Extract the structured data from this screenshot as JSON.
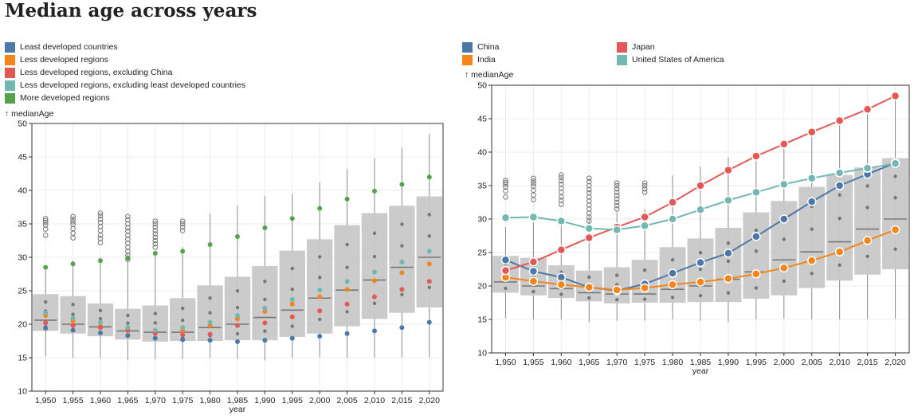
{
  "page": {
    "title": "Median age across years"
  },
  "chart_data": [
    {
      "type": "box",
      "xlabel": "year",
      "ylabel": "↑ medianAge",
      "ylim": [
        10,
        50
      ],
      "yticks": [
        10,
        15,
        20,
        25,
        30,
        35,
        40,
        45,
        50
      ],
      "grid": true,
      "legend_position": "top",
      "categories": [
        "1,950",
        "1,955",
        "1,960",
        "1,965",
        "1,970",
        "1,975",
        "1,980",
        "1,985",
        "1,990",
        "1,995",
        "2,000",
        "2,005",
        "2,010",
        "2,015",
        "2,020"
      ],
      "boxes": [
        {
          "q1": 19.0,
          "median": 20.6,
          "q3": 24.5,
          "min": 15.2,
          "max": 28.8
        },
        {
          "q1": 18.6,
          "median": 20.0,
          "q3": 24.2,
          "min": 15.0,
          "max": 29.5
        },
        {
          "q1": 18.2,
          "median": 19.6,
          "q3": 23.1,
          "min": 15.0,
          "max": 30.0
        },
        {
          "q1": 17.7,
          "median": 19.0,
          "q3": 22.3,
          "min": 14.6,
          "max": 30.5
        },
        {
          "q1": 17.4,
          "median": 18.8,
          "q3": 22.8,
          "min": 14.8,
          "max": 31.0
        },
        {
          "q1": 17.5,
          "median": 18.8,
          "q3": 23.9,
          "min": 14.8,
          "max": 31.5
        },
        {
          "q1": 17.5,
          "median": 19.5,
          "q3": 25.8,
          "min": 15.0,
          "max": 36.5
        },
        {
          "q1": 17.6,
          "median": 20.0,
          "q3": 27.1,
          "min": 14.8,
          "max": 37.8
        },
        {
          "q1": 17.6,
          "median": 21.0,
          "q3": 28.7,
          "min": 14.6,
          "max": 39.2
        },
        {
          "q1": 18.1,
          "median": 22.1,
          "q3": 31.0,
          "min": 15.0,
          "max": 39.5
        },
        {
          "q1": 18.6,
          "median": 23.9,
          "q3": 32.7,
          "min": 15.1,
          "max": 41.2
        },
        {
          "q1": 19.7,
          "median": 25.1,
          "q3": 34.8,
          "min": 15.0,
          "max": 43.2
        },
        {
          "q1": 20.8,
          "median": 26.6,
          "q3": 36.6,
          "min": 15.0,
          "max": 44.8
        },
        {
          "q1": 21.7,
          "median": 28.5,
          "q3": 37.7,
          "min": 15.1,
          "max": 46.4
        },
        {
          "q1": 22.5,
          "median": 30.0,
          "q3": 39.1,
          "min": 15.1,
          "max": 48.4
        }
      ],
      "outliers": [
        [
          33.3,
          34.2,
          34.8,
          35.2,
          35.5,
          35.8
        ],
        [
          32.9,
          33.6,
          34.3,
          34.9,
          35.3,
          35.7,
          36.1
        ],
        [
          32.2,
          32.8,
          33.3,
          34.0,
          34.6,
          35.2,
          35.7,
          36.2,
          36.6
        ],
        [
          29.7,
          30.3,
          30.9,
          31.5,
          32.1,
          32.7,
          33.3,
          33.9,
          34.4,
          35.0,
          35.6,
          36.1
        ],
        [
          31.5,
          32.0,
          32.5,
          33.0,
          33.5,
          34.0,
          34.5,
          35.0,
          35.4
        ],
        [
          34.0,
          34.5,
          35.0,
          35.4
        ]
      ],
      "series": [
        {
          "name": "Least developed countries",
          "color": "#4c78a8",
          "values": [
            19.4,
            19.1,
            18.7,
            18.3,
            17.9,
            17.7,
            17.6,
            17.4,
            17.6,
            17.9,
            18.2,
            18.6,
            19.0,
            19.5,
            20.3
          ]
        },
        {
          "name": "Less developed regions",
          "color": "#f58518",
          "values": [
            21.3,
            20.5,
            19.7,
            19.0,
            18.7,
            19.0,
            19.8,
            20.8,
            21.9,
            23.0,
            24.1,
            25.2,
            26.5,
            27.7,
            29.0
          ]
        },
        {
          "name": "Less developed regions, excluding China",
          "color": "#e45756",
          "values": [
            20.2,
            19.8,
            19.5,
            19.1,
            18.6,
            18.4,
            18.5,
            19.8,
            20.2,
            21.1,
            22.0,
            23.0,
            24.1,
            25.2,
            26.4
          ]
        },
        {
          "name": "Less developed regions, excluding least developed countries",
          "color": "#72b7b2",
          "values": [
            21.7,
            20.9,
            20.3,
            19.5,
            19.1,
            19.5,
            20.3,
            21.3,
            22.4,
            23.7,
            25.1,
            26.4,
            27.8,
            29.3,
            30.9
          ]
        },
        {
          "name": "More developed regions",
          "color": "#54a24b",
          "values": [
            28.5,
            29.0,
            29.5,
            29.9,
            30.6,
            30.9,
            31.9,
            33.1,
            34.4,
            35.8,
            37.3,
            38.7,
            39.9,
            40.9,
            42.0
          ]
        }
      ]
    },
    {
      "type": "box",
      "xlabel": "year",
      "ylabel": "↑ medianAge",
      "ylim": [
        10,
        50
      ],
      "yticks": [
        10,
        15,
        20,
        25,
        30,
        35,
        40,
        45,
        50
      ],
      "grid": true,
      "legend_position": "top",
      "categories": [
        "1,950",
        "1,955",
        "1,960",
        "1,965",
        "1,970",
        "1,975",
        "1,980",
        "1,985",
        "1,990",
        "1,995",
        "2,000",
        "2,005",
        "2,010",
        "2,015",
        "2,020"
      ],
      "boxes": [
        {
          "q1": 19.0,
          "median": 20.6,
          "q3": 24.5,
          "min": 15.2,
          "max": 28.8
        },
        {
          "q1": 18.6,
          "median": 20.0,
          "q3": 24.2,
          "min": 15.0,
          "max": 29.5
        },
        {
          "q1": 18.2,
          "median": 19.6,
          "q3": 23.1,
          "min": 15.0,
          "max": 30.0
        },
        {
          "q1": 17.7,
          "median": 19.0,
          "q3": 22.3,
          "min": 14.6,
          "max": 30.5
        },
        {
          "q1": 17.4,
          "median": 18.8,
          "q3": 22.8,
          "min": 14.8,
          "max": 31.0
        },
        {
          "q1": 17.5,
          "median": 18.8,
          "q3": 23.9,
          "min": 14.8,
          "max": 31.5
        },
        {
          "q1": 17.5,
          "median": 19.5,
          "q3": 25.8,
          "min": 15.0,
          "max": 36.5
        },
        {
          "q1": 17.6,
          "median": 20.0,
          "q3": 27.1,
          "min": 14.8,
          "max": 37.8
        },
        {
          "q1": 17.6,
          "median": 21.0,
          "q3": 28.7,
          "min": 14.6,
          "max": 39.2
        },
        {
          "q1": 18.1,
          "median": 22.1,
          "q3": 31.0,
          "min": 15.0,
          "max": 39.5
        },
        {
          "q1": 18.6,
          "median": 23.9,
          "q3": 32.7,
          "min": 15.1,
          "max": 41.2
        },
        {
          "q1": 19.7,
          "median": 25.1,
          "q3": 34.8,
          "min": 15.0,
          "max": 43.2
        },
        {
          "q1": 20.8,
          "median": 26.6,
          "q3": 36.6,
          "min": 15.0,
          "max": 44.8
        },
        {
          "q1": 21.7,
          "median": 28.5,
          "q3": 37.7,
          "min": 15.1,
          "max": 46.4
        },
        {
          "q1": 22.5,
          "median": 30.0,
          "q3": 39.1,
          "min": 15.1,
          "max": 48.4
        }
      ],
      "outliers": [
        [
          33.3,
          34.2,
          34.8,
          35.2,
          35.5,
          35.8
        ],
        [
          32.9,
          33.6,
          34.3,
          34.9,
          35.3,
          35.7,
          36.1
        ],
        [
          32.2,
          32.8,
          33.3,
          34.0,
          34.6,
          35.2,
          35.7,
          36.2,
          36.6
        ],
        [
          29.7,
          30.3,
          30.9,
          31.5,
          32.1,
          32.7,
          33.3,
          33.9,
          34.4,
          35.0,
          35.6,
          36.1
        ],
        [
          31.5,
          32.0,
          32.5,
          33.0,
          33.5,
          34.0,
          34.5,
          35.0,
          35.4
        ],
        [
          34.0,
          34.5,
          35.0,
          35.4
        ]
      ],
      "series": [
        {
          "name": "China",
          "color": "#4c78a8",
          "values": [
            23.9,
            22.2,
            21.3,
            19.8,
            19.3,
            20.3,
            21.9,
            23.5,
            24.9,
            27.4,
            30.0,
            32.6,
            35.0,
            36.7,
            38.4
          ]
        },
        {
          "name": "India",
          "color": "#f58518",
          "values": [
            21.3,
            20.7,
            20.2,
            19.8,
            19.4,
            19.7,
            20.2,
            20.6,
            21.1,
            21.8,
            22.7,
            23.8,
            25.1,
            26.8,
            28.4
          ]
        },
        {
          "name": "Japan",
          "color": "#e45756",
          "values": [
            22.3,
            23.6,
            25.4,
            27.2,
            28.8,
            30.3,
            32.5,
            35.0,
            37.3,
            39.4,
            41.2,
            43.0,
            44.7,
            46.4,
            48.4
          ]
        },
        {
          "name": "United States of America",
          "color": "#72b7b2",
          "values": [
            30.2,
            30.3,
            29.7,
            28.6,
            28.4,
            29.0,
            30.0,
            31.4,
            32.8,
            34.0,
            35.2,
            36.1,
            36.9,
            37.6,
            38.3
          ]
        }
      ]
    }
  ]
}
